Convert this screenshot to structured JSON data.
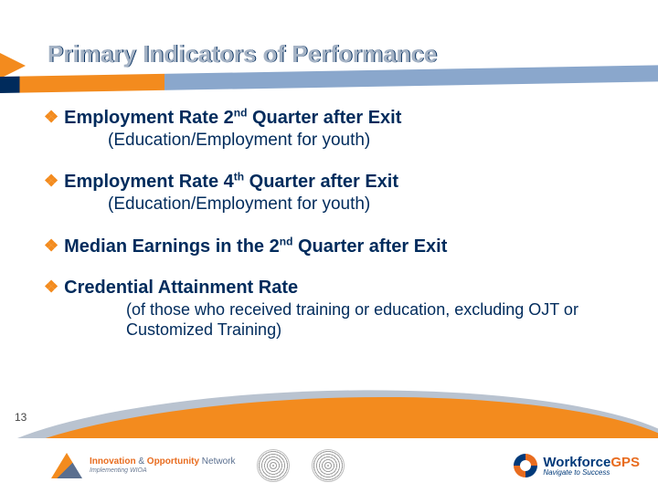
{
  "title": "Primary Indicators of Performance",
  "page_number": "13",
  "colors": {
    "title_front": "#a5b3c5",
    "title_shadow": "#002b5c",
    "heading_text": "#002b5c",
    "bullet": "#f38b1e",
    "band_navy": "#002b5c",
    "band_orange": "#f38b1e",
    "band_grey": "#8aa7cc",
    "curve_grey": "#b9c3d0",
    "curve_orange": "#f38b1e"
  },
  "typography": {
    "title_fontsize_pt": 20,
    "heading_fontsize_pt": 15,
    "sub_fontsize_pt": 14,
    "subsmall_fontsize_pt": 13,
    "font_family": "Arial"
  },
  "items": [
    {
      "heading_pre": "Employment Rate 2",
      "heading_sup": "nd",
      "heading_post": " Quarter after Exit",
      "sub": "(Education/Employment for youth)"
    },
    {
      "heading_pre": "Employment Rate 4",
      "heading_sup": "th",
      "heading_post": " Quarter after Exit",
      "sub": "(Education/Employment for youth)"
    },
    {
      "heading_pre": "Median Earnings in the 2",
      "heading_sup": "nd",
      "heading_post": " Quarter after Exit",
      "sub": ""
    },
    {
      "heading_pre": "Credential Attainment Rate",
      "heading_sup": "",
      "heading_post": "",
      "sub_small": "(of those who received training or education, excluding OJT or Customized Training)"
    }
  ],
  "footer": {
    "ion": {
      "line1a": "Innovation ",
      "amp": "&",
      "line1b": " Opportunity ",
      "line1c": "Network",
      "line2": "Implementing WIOA"
    },
    "gps": {
      "workforce": "Workforce",
      "gps": "GPS",
      "tag": "Navigate to Success"
    }
  }
}
